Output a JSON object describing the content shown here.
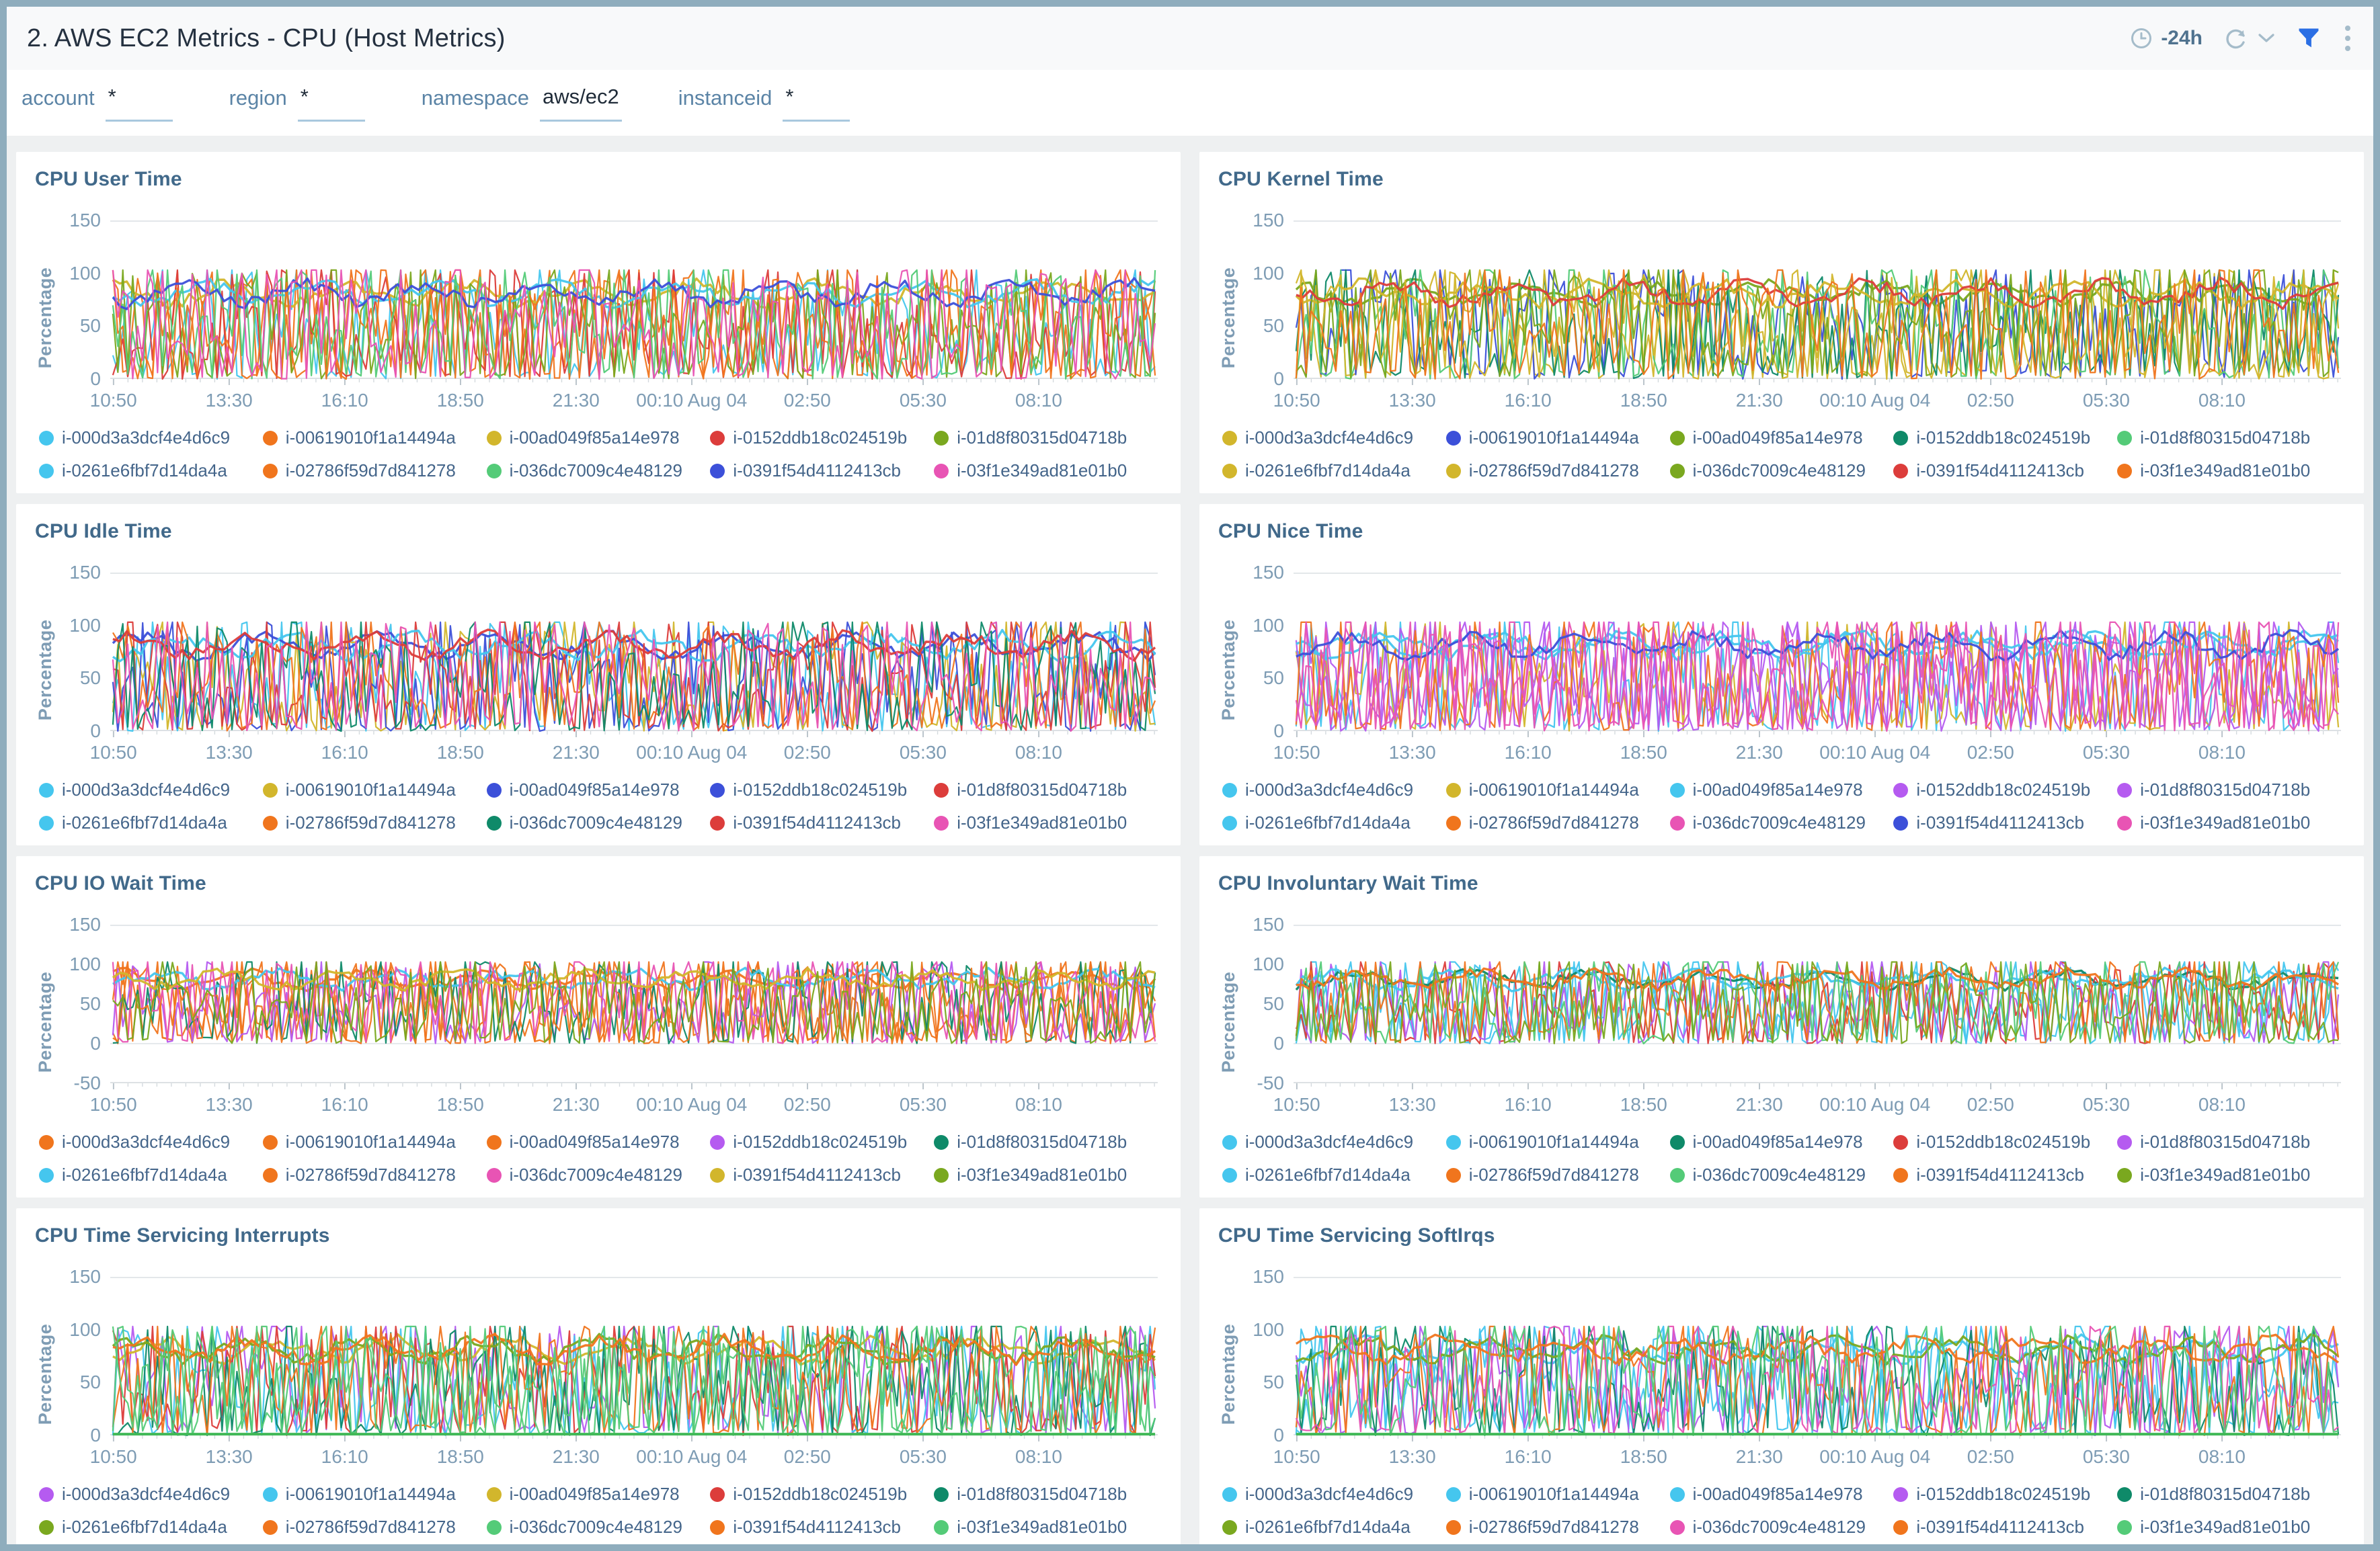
{
  "header": {
    "title": "2. AWS EC2 Metrics - CPU (Host Metrics)",
    "time_range_label": "-24h",
    "icons": [
      "clock-icon",
      "refresh-icon",
      "chevron-down-icon",
      "filter-icon",
      "kebab-menu-icon"
    ],
    "filter_icon_color": "#2b6fe4"
  },
  "filters": [
    {
      "label": "account",
      "value": "*"
    },
    {
      "label": "region",
      "value": "*"
    },
    {
      "label": "namespace",
      "value": "aws/ec2"
    },
    {
      "label": "instanceid",
      "value": "*"
    }
  ],
  "palette": {
    "cyan": "#45c6ee",
    "orange": "#f0751d",
    "yellow": "#d2b62c",
    "red": "#dc3d3b",
    "olive": "#7aa81f",
    "lightgreen": "#54cb78",
    "teal": "#0f8a69",
    "blue": "#3c50d9",
    "pink": "#e854b4",
    "purple": "#b55bf0"
  },
  "instances": [
    "i-000d3a3dcf4e4d6c9",
    "i-00619010f1a14494a",
    "i-00ad049f85a14e978",
    "i-0152ddb18c024519b",
    "i-01d8f80315d04718b",
    "i-0261e6fbf7d14da4a",
    "i-02786f59d7d841278",
    "i-036dc7009c4e48129",
    "i-0391f54d4112413cb",
    "i-03f1e349ad81e01b0"
  ],
  "x_ticks": [
    "10:50",
    "13:30",
    "16:10",
    "18:50",
    "21:30",
    "00:10 Aug 04",
    "02:50",
    "05:30",
    "08:10"
  ],
  "chart_data": [
    {
      "type": "line",
      "title": "CPU User Time",
      "ylabel": "Percentage",
      "ylim": [
        0,
        150
      ],
      "yticks": [
        150,
        100,
        50,
        0
      ],
      "grid": "top-only",
      "legend_position": "bottom",
      "x": [
        "10:50",
        "13:30",
        "16:10",
        "18:50",
        "21:30",
        "00:10 Aug 04",
        "02:50",
        "05:30",
        "08:10"
      ],
      "pattern": "dense high-frequency noise, 10 series oscillating 0-100%",
      "series": [
        {
          "name": "i-000d3a3dcf4e4d6c9",
          "color": "cyan"
        },
        {
          "name": "i-00619010f1a14494a",
          "color": "orange"
        },
        {
          "name": "i-00ad049f85a14e978",
          "color": "yellow"
        },
        {
          "name": "i-0152ddb18c024519b",
          "color": "red"
        },
        {
          "name": "i-01d8f80315d04718b",
          "color": "olive"
        },
        {
          "name": "i-0261e6fbf7d14da4a",
          "color": "cyan"
        },
        {
          "name": "i-02786f59d7d841278",
          "color": "orange"
        },
        {
          "name": "i-036dc7009c4e48129",
          "color": "lightgreen"
        },
        {
          "name": "i-0391f54d4112413cb",
          "color": "blue"
        },
        {
          "name": "i-03f1e349ad81e01b0",
          "color": "pink"
        }
      ]
    },
    {
      "type": "line",
      "title": "CPU Kernel Time",
      "ylabel": "Percentage",
      "ylim": [
        0,
        150
      ],
      "yticks": [
        150,
        100,
        50,
        0
      ],
      "grid": "top-only",
      "legend_position": "bottom",
      "x": [
        "10:50",
        "13:30",
        "16:10",
        "18:50",
        "21:30",
        "00:10 Aug 04",
        "02:50",
        "05:30",
        "08:10"
      ],
      "pattern": "dense high-frequency noise, 10 series oscillating 0-100%",
      "series": [
        {
          "name": "i-000d3a3dcf4e4d6c9",
          "color": "yellow"
        },
        {
          "name": "i-00619010f1a14494a",
          "color": "blue"
        },
        {
          "name": "i-00ad049f85a14e978",
          "color": "olive"
        },
        {
          "name": "i-0152ddb18c024519b",
          "color": "teal"
        },
        {
          "name": "i-01d8f80315d04718b",
          "color": "lightgreen"
        },
        {
          "name": "i-0261e6fbf7d14da4a",
          "color": "yellow"
        },
        {
          "name": "i-02786f59d7d841278",
          "color": "yellow"
        },
        {
          "name": "i-036dc7009c4e48129",
          "color": "olive"
        },
        {
          "name": "i-0391f54d4112413cb",
          "color": "red"
        },
        {
          "name": "i-03f1e349ad81e01b0",
          "color": "orange"
        }
      ]
    },
    {
      "type": "line",
      "title": "CPU Idle Time",
      "ylabel": "Percentage",
      "ylim": [
        0,
        150
      ],
      "yticks": [
        150,
        100,
        50,
        0
      ],
      "grid": "top-only",
      "legend_position": "bottom",
      "x": [
        "10:50",
        "13:30",
        "16:10",
        "18:50",
        "21:30",
        "00:10 Aug 04",
        "02:50",
        "05:30",
        "08:10"
      ],
      "pattern": "dense high-frequency noise, 10 series oscillating 0-100%",
      "series": [
        {
          "name": "i-000d3a3dcf4e4d6c9",
          "color": "cyan"
        },
        {
          "name": "i-00619010f1a14494a",
          "color": "yellow"
        },
        {
          "name": "i-00ad049f85a14e978",
          "color": "blue"
        },
        {
          "name": "i-0152ddb18c024519b",
          "color": "blue"
        },
        {
          "name": "i-01d8f80315d04718b",
          "color": "red"
        },
        {
          "name": "i-0261e6fbf7d14da4a",
          "color": "cyan"
        },
        {
          "name": "i-02786f59d7d841278",
          "color": "orange"
        },
        {
          "name": "i-036dc7009c4e48129",
          "color": "teal"
        },
        {
          "name": "i-0391f54d4112413cb",
          "color": "red"
        },
        {
          "name": "i-03f1e349ad81e01b0",
          "color": "pink"
        }
      ]
    },
    {
      "type": "line",
      "title": "CPU Nice Time",
      "ylabel": "Percentage",
      "ylim": [
        0,
        150
      ],
      "yticks": [
        150,
        100,
        50,
        0
      ],
      "grid": "top-only",
      "legend_position": "bottom",
      "x": [
        "10:50",
        "13:30",
        "16:10",
        "18:50",
        "21:30",
        "00:10 Aug 04",
        "02:50",
        "05:30",
        "08:10"
      ],
      "pattern": "dense high-frequency noise, 10 series oscillating 0-100%",
      "series": [
        {
          "name": "i-000d3a3dcf4e4d6c9",
          "color": "cyan"
        },
        {
          "name": "i-00619010f1a14494a",
          "color": "yellow"
        },
        {
          "name": "i-00ad049f85a14e978",
          "color": "cyan"
        },
        {
          "name": "i-0152ddb18c024519b",
          "color": "purple"
        },
        {
          "name": "i-01d8f80315d04718b",
          "color": "purple"
        },
        {
          "name": "i-0261e6fbf7d14da4a",
          "color": "cyan"
        },
        {
          "name": "i-02786f59d7d841278",
          "color": "orange"
        },
        {
          "name": "i-036dc7009c4e48129",
          "color": "pink"
        },
        {
          "name": "i-0391f54d4112413cb",
          "color": "blue"
        },
        {
          "name": "i-03f1e349ad81e01b0",
          "color": "pink"
        }
      ]
    },
    {
      "type": "line",
      "title": "CPU IO Wait Time",
      "ylabel": "Percentage",
      "ylim": [
        -50,
        150
      ],
      "yticks": [
        150,
        100,
        50,
        0,
        -50
      ],
      "grid": "top-only",
      "legend_position": "bottom",
      "x": [
        "10:50",
        "13:30",
        "16:10",
        "18:50",
        "21:30",
        "00:10 Aug 04",
        "02:50",
        "05:30",
        "08:10"
      ],
      "pattern": "dense high-frequency noise, 10 series oscillating 0-100%",
      "series": [
        {
          "name": "i-000d3a3dcf4e4d6c9",
          "color": "orange"
        },
        {
          "name": "i-00619010f1a14494a",
          "color": "orange"
        },
        {
          "name": "i-00ad049f85a14e978",
          "color": "orange"
        },
        {
          "name": "i-0152ddb18c024519b",
          "color": "purple"
        },
        {
          "name": "i-01d8f80315d04718b",
          "color": "teal"
        },
        {
          "name": "i-0261e6fbf7d14da4a",
          "color": "cyan"
        },
        {
          "name": "i-02786f59d7d841278",
          "color": "orange"
        },
        {
          "name": "i-036dc7009c4e48129",
          "color": "pink"
        },
        {
          "name": "i-0391f54d4112413cb",
          "color": "yellow"
        },
        {
          "name": "i-03f1e349ad81e01b0",
          "color": "olive"
        }
      ]
    },
    {
      "type": "line",
      "title": "CPU Involuntary Wait Time",
      "ylabel": "Percentage",
      "ylim": [
        -50,
        150
      ],
      "yticks": [
        150,
        100,
        50,
        0,
        -50
      ],
      "grid": "top-only",
      "legend_position": "bottom",
      "x": [
        "10:50",
        "13:30",
        "16:10",
        "18:50",
        "21:30",
        "00:10 Aug 04",
        "02:50",
        "05:30",
        "08:10"
      ],
      "pattern": "dense high-frequency noise, 10 series oscillating 0-100%",
      "series": [
        {
          "name": "i-000d3a3dcf4e4d6c9",
          "color": "cyan"
        },
        {
          "name": "i-00619010f1a14494a",
          "color": "cyan"
        },
        {
          "name": "i-00ad049f85a14e978",
          "color": "teal"
        },
        {
          "name": "i-0152ddb18c024519b",
          "color": "red"
        },
        {
          "name": "i-01d8f80315d04718b",
          "color": "purple"
        },
        {
          "name": "i-0261e6fbf7d14da4a",
          "color": "cyan"
        },
        {
          "name": "i-02786f59d7d841278",
          "color": "orange"
        },
        {
          "name": "i-036dc7009c4e48129",
          "color": "lightgreen"
        },
        {
          "name": "i-0391f54d4112413cb",
          "color": "orange"
        },
        {
          "name": "i-03f1e349ad81e01b0",
          "color": "olive"
        }
      ]
    },
    {
      "type": "line",
      "title": "CPU Time Servicing Interrupts",
      "ylabel": "Percentage",
      "ylim": [
        0,
        150
      ],
      "yticks": [
        150,
        100,
        50,
        0
      ],
      "grid": "top-only",
      "legend_position": "bottom",
      "flat_zero_line": "#41b857",
      "x": [
        "10:50",
        "13:30",
        "16:10",
        "18:50",
        "21:30",
        "00:10 Aug 04",
        "02:50",
        "05:30",
        "08:10"
      ],
      "pattern": "dense high-frequency noise, 10 series oscillating 0-100%, one flat series at 0",
      "series": [
        {
          "name": "i-000d3a3dcf4e4d6c9",
          "color": "purple"
        },
        {
          "name": "i-00619010f1a14494a",
          "color": "cyan"
        },
        {
          "name": "i-00ad049f85a14e978",
          "color": "yellow"
        },
        {
          "name": "i-0152ddb18c024519b",
          "color": "red"
        },
        {
          "name": "i-01d8f80315d04718b",
          "color": "teal"
        },
        {
          "name": "i-0261e6fbf7d14da4a",
          "color": "olive"
        },
        {
          "name": "i-02786f59d7d841278",
          "color": "orange"
        },
        {
          "name": "i-036dc7009c4e48129",
          "color": "lightgreen"
        },
        {
          "name": "i-0391f54d4112413cb",
          "color": "orange"
        },
        {
          "name": "i-03f1e349ad81e01b0",
          "color": "lightgreen"
        }
      ]
    },
    {
      "type": "line",
      "title": "CPU Time Servicing SoftIrqs",
      "ylabel": "Percentage",
      "ylim": [
        0,
        150
      ],
      "yticks": [
        150,
        100,
        50,
        0
      ],
      "grid": "top-only",
      "legend_position": "bottom",
      "flat_zero_line": "#41b857",
      "x": [
        "10:50",
        "13:30",
        "16:10",
        "18:50",
        "21:30",
        "00:10 Aug 04",
        "02:50",
        "05:30",
        "08:10"
      ],
      "pattern": "dense high-frequency noise, 10 series oscillating 0-100%, one flat series at 0",
      "series": [
        {
          "name": "i-000d3a3dcf4e4d6c9",
          "color": "cyan"
        },
        {
          "name": "i-00619010f1a14494a",
          "color": "cyan"
        },
        {
          "name": "i-00ad049f85a14e978",
          "color": "cyan"
        },
        {
          "name": "i-0152ddb18c024519b",
          "color": "purple"
        },
        {
          "name": "i-01d8f80315d04718b",
          "color": "teal"
        },
        {
          "name": "i-0261e6fbf7d14da4a",
          "color": "olive"
        },
        {
          "name": "i-02786f59d7d841278",
          "color": "orange"
        },
        {
          "name": "i-036dc7009c4e48129",
          "color": "pink"
        },
        {
          "name": "i-0391f54d4112413cb",
          "color": "orange"
        },
        {
          "name": "i-03f1e349ad81e01b0",
          "color": "lightgreen"
        }
      ]
    }
  ]
}
